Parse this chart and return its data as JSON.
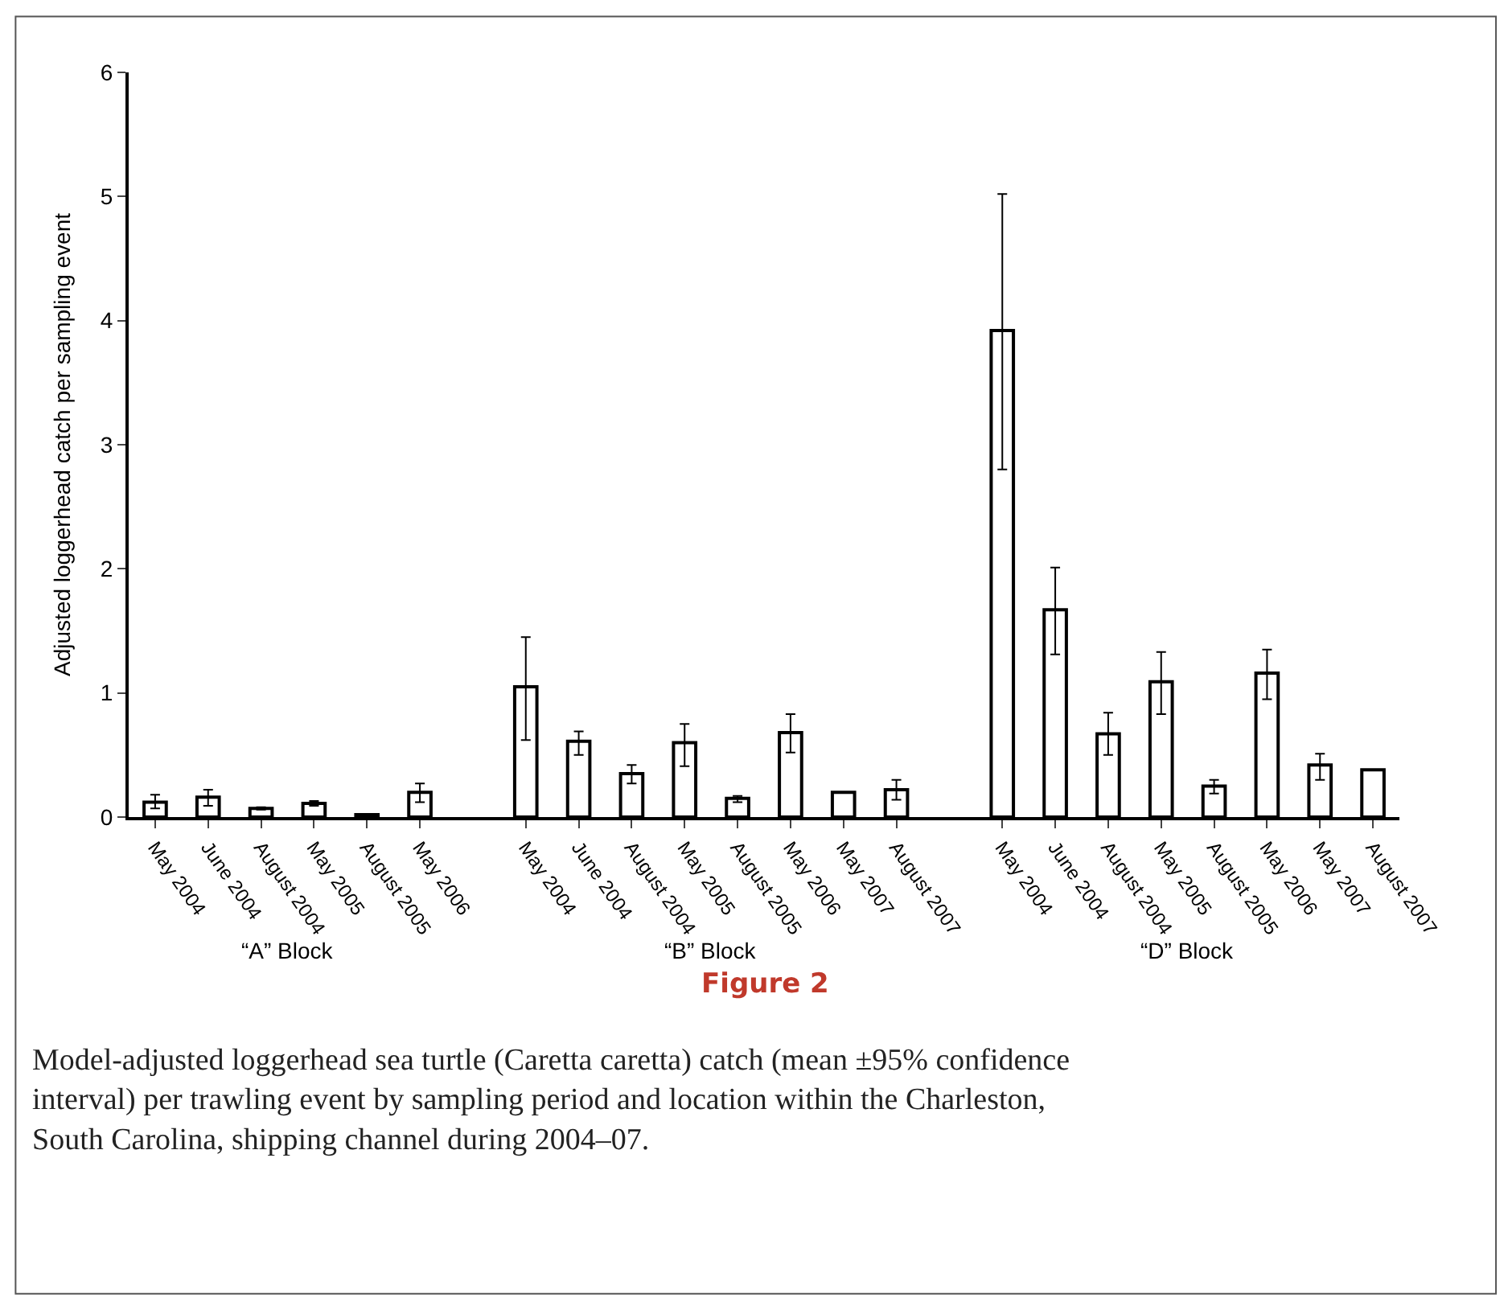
{
  "chart_data": {
    "type": "bar",
    "ylabel": "Adjusted loggerhead catch per sampling event",
    "categories": [
      "May 2004",
      "June 2004",
      "August 2004",
      "May 2005",
      "August 2005",
      "May 2006",
      null,
      "May 2004",
      "June 2004",
      "August 2004",
      "May 2005",
      "August 2005",
      "May 2006",
      "May 2007",
      "August 2007",
      null,
      "May 2004",
      "June 2004",
      "August 2004",
      "May 2005",
      "August 2005",
      "May 2006",
      "May 2007",
      "August 2007"
    ],
    "values": [
      0.12,
      0.16,
      0.07,
      0.11,
      0.02,
      0.2,
      null,
      1.05,
      0.61,
      0.35,
      0.6,
      0.15,
      0.68,
      0.2,
      0.22,
      null,
      3.92,
      1.67,
      0.67,
      1.09,
      0.25,
      1.16,
      0.42,
      0.38
    ],
    "errors": [
      [
        0.07,
        0.18
      ],
      [
        0.09,
        0.22
      ],
      [
        0.06,
        0.08
      ],
      [
        0.09,
        0.13
      ],
      null,
      [
        0.12,
        0.27
      ],
      null,
      [
        0.62,
        1.45
      ],
      [
        0.5,
        0.69
      ],
      [
        0.27,
        0.42
      ],
      [
        0.41,
        0.75
      ],
      [
        0.12,
        0.17
      ],
      [
        0.52,
        0.83
      ],
      null,
      [
        0.14,
        0.3
      ],
      null,
      [
        2.8,
        5.02
      ],
      [
        1.31,
        2.01
      ],
      [
        0.5,
        0.84
      ],
      [
        0.83,
        1.33
      ],
      [
        0.19,
        0.3
      ],
      [
        0.95,
        1.35
      ],
      [
        0.3,
        0.51
      ],
      null
    ],
    "color": "#ffffff",
    "ylim": [
      0,
      6
    ],
    "yticks": [
      0,
      1,
      2,
      3,
      4,
      5,
      6
    ],
    "annotations": [
      "“A” Block",
      "“B” Block",
      "“D” Block",
      "Figure 2",
      "Model-adjusted loggerhead sea turtle (Caretta caretta) catch (mean ±95% confidence interval) per trawling event by sampling period and location within the Charleston, South Carolina, shipping channel during 2004–07."
    ]
  }
}
